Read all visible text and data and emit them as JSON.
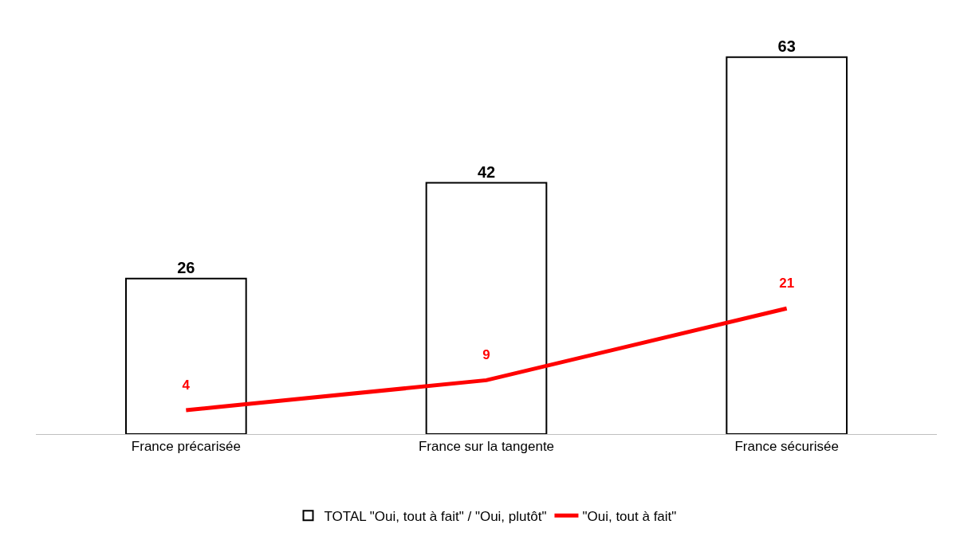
{
  "chart_data": {
    "type": "bar",
    "categories": [
      "France précarisée",
      "France sur la tangente",
      "France sécurisée"
    ],
    "series": [
      {
        "name": "TOTAL \"Oui, tout à fait\" / \"Oui, plutôt\"",
        "color": "#ffffff",
        "values": [
          26,
          42,
          63
        ]
      },
      {
        "name": "\"Oui, tout à fait\"",
        "type": "line",
        "color": "#ff0000",
        "values": [
          4,
          9,
          21
        ]
      }
    ],
    "data_labels": true,
    "legend": "bottom",
    "marker": "none",
    "line_style": "solid"
  }
}
